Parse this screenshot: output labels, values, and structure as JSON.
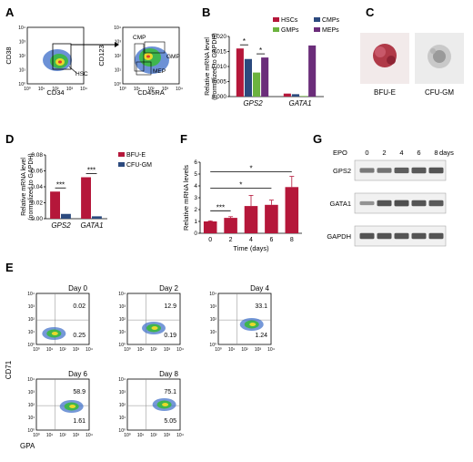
{
  "colors": {
    "hsc": "#b5173a",
    "cmp": "#2c4a7e",
    "gmp": "#6cb33f",
    "mep": "#6b2d7a",
    "bfue": "#b5173a",
    "cfugm": "#2c4a7e",
    "time": "#b5173a"
  },
  "panels": {
    "A": {
      "label": "A",
      "plot1": {
        "xlabel": "CD34",
        "ylabel": "CD38",
        "gate": "HSC"
      },
      "plot2": {
        "xlabel": "CD45RA",
        "ylabel": "CD123",
        "gates": [
          "CMP",
          "GMP",
          "MEP"
        ]
      },
      "ticks": [
        "10⁰",
        "10¹",
        "10²",
        "10³",
        "10⁴"
      ]
    },
    "B": {
      "label": "B"
    },
    "C": {
      "label": "C",
      "images": [
        "BFU-E",
        "CFU-GM"
      ]
    },
    "D": {
      "label": "D"
    },
    "E": {
      "label": "E",
      "xlabel": "GPA",
      "ylabel": "CD71",
      "plots": [
        {
          "day": "Day 0",
          "upper": "0.02",
          "lower": "0.25"
        },
        {
          "day": "Day 2",
          "upper": "12.9",
          "lower": "0.19"
        },
        {
          "day": "Day 4",
          "upper": "33.1",
          "lower": "1.24"
        },
        {
          "day": "Day 6",
          "upper": "58.9",
          "lower": "1.61"
        },
        {
          "day": "Day 8",
          "upper": "75.1",
          "lower": "5.05"
        }
      ]
    },
    "F": {
      "label": "F"
    },
    "G": {
      "label": "G",
      "epo_label": "EPO",
      "days": [
        "0",
        "2",
        "4",
        "6",
        "8"
      ],
      "days_label": "days",
      "rows": [
        {
          "name": "GPS2",
          "intensity": [
            0.55,
            0.6,
            0.8,
            0.85,
            0.9
          ]
        },
        {
          "name": "GATA1",
          "intensity": [
            0.3,
            0.9,
            0.95,
            0.9,
            0.85
          ]
        },
        {
          "name": "GAPDH",
          "intensity": [
            0.9,
            0.9,
            0.9,
            0.9,
            0.9
          ]
        }
      ]
    }
  },
  "chart_data": [
    {
      "panel": "B",
      "type": "bar",
      "categories": [
        "GPS2",
        "GATA1"
      ],
      "series": [
        {
          "name": "HSCs",
          "values": [
            0.016,
            0.001
          ]
        },
        {
          "name": "CMPs",
          "values": [
            0.0125,
            0.0008
          ]
        },
        {
          "name": "GMPs",
          "values": [
            0.008,
            0.0002
          ]
        },
        {
          "name": "MEPs",
          "values": [
            0.013,
            0.017
          ]
        }
      ],
      "ylabel": "Relative mRNA level (normalized to GAPDH)",
      "ylim": [
        0,
        0.02
      ],
      "yticks": [
        "0.000",
        "0.005",
        "0.010",
        "0.015",
        "0.020"
      ],
      "annotations": [
        "*",
        "*"
      ]
    },
    {
      "panel": "D",
      "type": "bar",
      "categories": [
        "GPS2",
        "GATA1"
      ],
      "series": [
        {
          "name": "BFU-E",
          "values": [
            0.034,
            0.052
          ]
        },
        {
          "name": "CFU-GM",
          "values": [
            0.006,
            0.003
          ]
        }
      ],
      "ylabel": "Relative mRNA level (normalized to GAPDH)",
      "ylim": [
        0,
        0.08
      ],
      "yticks": [
        "0.00",
        "0.02",
        "0.04",
        "0.06",
        "0.08"
      ],
      "annotations": [
        "***",
        "***"
      ]
    },
    {
      "panel": "F",
      "type": "bar",
      "categories": [
        "0",
        "2",
        "4",
        "6",
        "8"
      ],
      "values": [
        1.0,
        1.3,
        2.3,
        2.4,
        3.9
      ],
      "errors": [
        0.05,
        0.1,
        0.9,
        0.4,
        0.9
      ],
      "xlabel": "Time (days)",
      "ylabel": "Relative mRNA levels",
      "ylim": [
        0,
        6
      ],
      "yticks": [
        "0",
        "1",
        "2",
        "3",
        "4",
        "5",
        "6"
      ],
      "annotations": [
        "***",
        "*",
        "*"
      ]
    }
  ]
}
